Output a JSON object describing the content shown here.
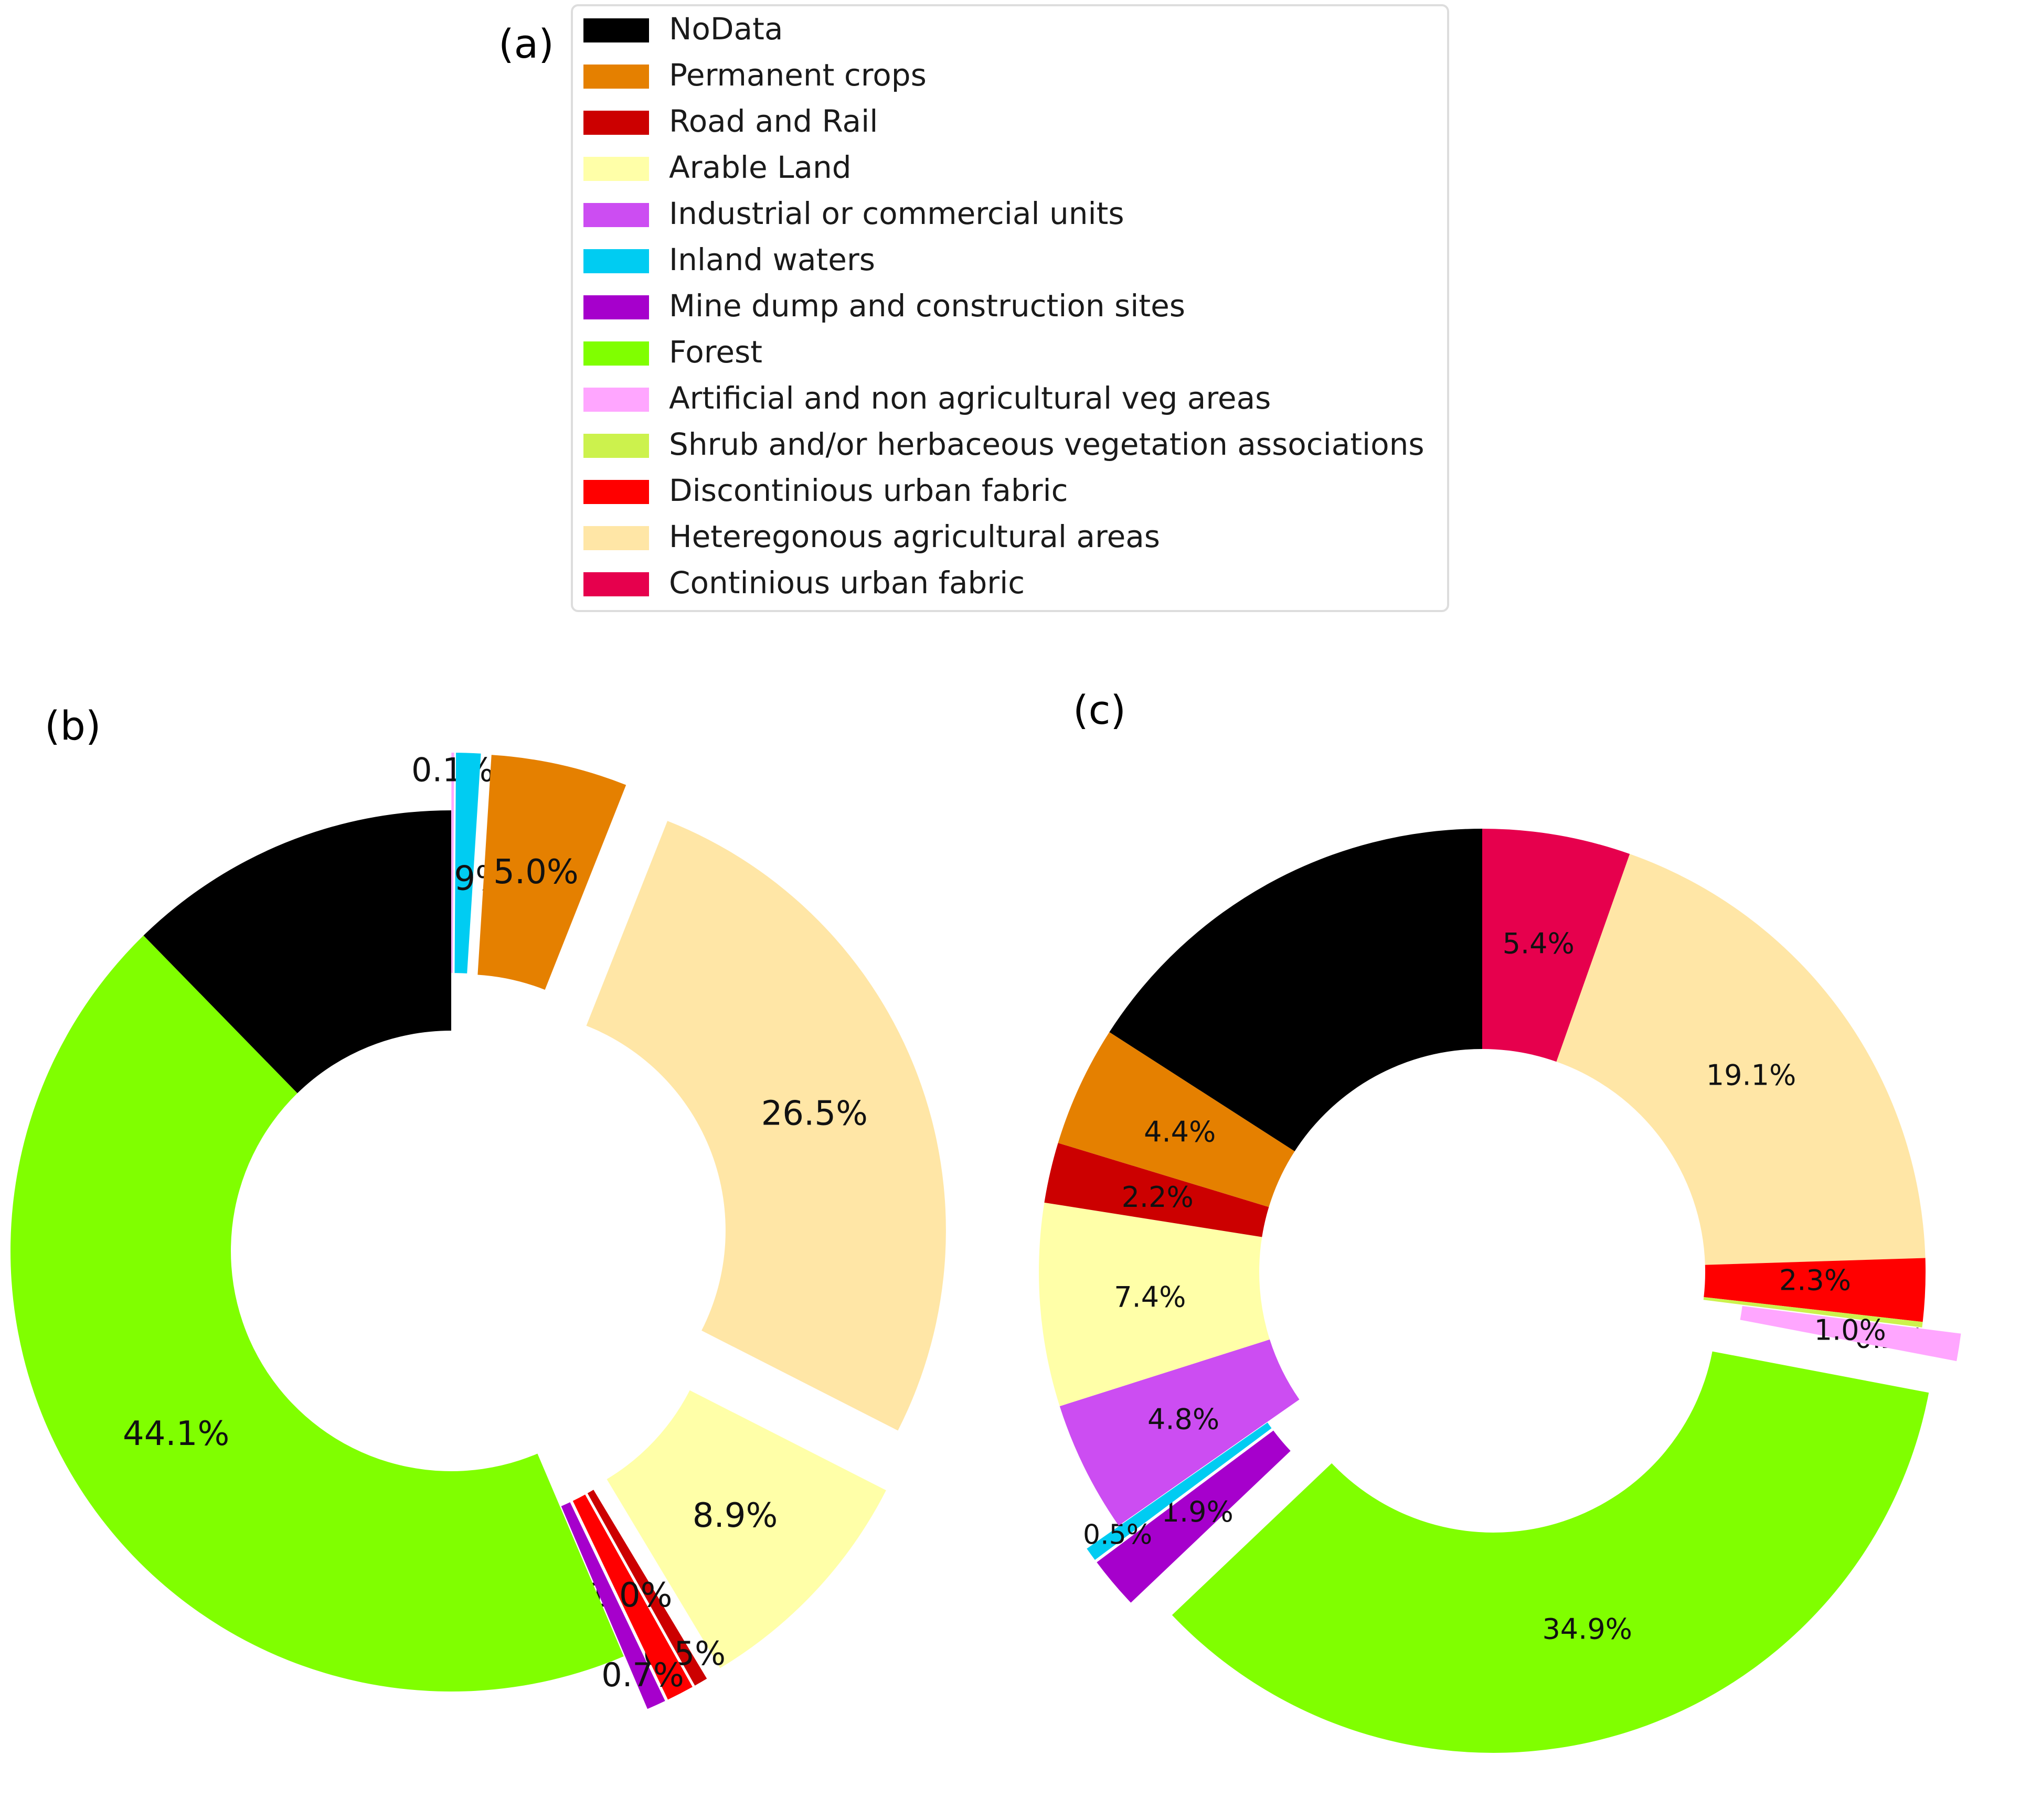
{
  "figure": {
    "panel_a_label": "(a)",
    "panel_b_label": "(b)",
    "panel_c_label": "(c)"
  },
  "legend": {
    "placement": "top-center",
    "entries": [
      {
        "name": "NoData",
        "color": "#000000"
      },
      {
        "name": "Permanent crops",
        "color": "#e58000"
      },
      {
        "name": "Road and Rail",
        "color": "#cc0000"
      },
      {
        "name": "Arable Land",
        "color": "#ffffa8"
      },
      {
        "name": "Industrial or commercial units",
        "color": "#cc4df2"
      },
      {
        "name": "Inland waters",
        "color": "#00ccf2"
      },
      {
        "name": "Mine dump and construction sites",
        "color": "#a600cc"
      },
      {
        "name": "Forest",
        "color": "#80ff00"
      },
      {
        "name": "Artificial and non agricultural veg areas",
        "color": "#ffa6ff"
      },
      {
        "name": "Shrub and/or herbaceous vegetation associations",
        "color": "#ccf24d"
      },
      {
        "name": "Discontinious urban fabric",
        "color": "#ff0000"
      },
      {
        "name": "Heteregonous agricultural areas",
        "color": "#ffe6a6"
      },
      {
        "name": "Continious urban fabric",
        "color": "#e6004d"
      }
    ]
  },
  "chart_data": [
    {
      "type": "pie",
      "style": "donut",
      "panel": "(b)",
      "start": "top (12 o'clock)",
      "direction": "clockwise",
      "slices": [
        {
          "category": "Artificial and non agricultural veg areas",
          "value": 0.1,
          "label": "0.1%",
          "exploded": true
        },
        {
          "category": "Inland waters",
          "value": 0.9,
          "label": "0.9%",
          "exploded": true
        },
        {
          "category": "Permanent crops",
          "value": 5.0,
          "label": "5.0%",
          "exploded": true
        },
        {
          "category": "Heteregonous agricultural areas",
          "value": 26.5,
          "label": "26.5%",
          "exploded": true
        },
        {
          "category": "Arable Land",
          "value": 8.9,
          "label": "8.9%",
          "exploded": true
        },
        {
          "category": "Road and Rail",
          "value": 0.5,
          "label": "0.5%",
          "exploded": true
        },
        {
          "category": "Discontinious urban fabric",
          "value": 1.0,
          "label": "1.0%",
          "exploded": true
        },
        {
          "category": "Mine dump and construction sites",
          "value": 0.7,
          "label": "0.7%",
          "exploded": true
        },
        {
          "category": "Forest",
          "value": 44.1,
          "label": "44.1%",
          "exploded": false
        },
        {
          "category": "NoData",
          "value": 12.3,
          "label": "",
          "exploded": false
        }
      ]
    },
    {
      "type": "pie",
      "style": "donut",
      "panel": "(c)",
      "start": "top (12 o'clock)",
      "direction": "clockwise",
      "slices": [
        {
          "category": "Continious urban fabric",
          "value": 5.4,
          "label": "5.4%",
          "exploded": false
        },
        {
          "category": "Heteregonous agricultural areas",
          "value": 19.1,
          "label": "19.1%",
          "exploded": false
        },
        {
          "category": "Discontinious urban fabric",
          "value": 2.3,
          "label": "2.3%",
          "exploded": false
        },
        {
          "category": "Shrub and/or herbaceous vegetation associations",
          "value": 0.2,
          "label": "0.2%",
          "exploded": false
        },
        {
          "category": "Artificial and non agricultural veg areas",
          "value": 1.0,
          "label": "1.0%",
          "exploded": true
        },
        {
          "category": "Forest",
          "value": 34.9,
          "label": "34.9%",
          "exploded": true
        },
        {
          "category": "Mine dump and construction sites",
          "value": 1.9,
          "label": "1.9%",
          "exploded": true
        },
        {
          "category": "Inland waters",
          "value": 0.5,
          "label": "0.5%",
          "exploded": true
        },
        {
          "category": "Industrial or commercial units",
          "value": 4.8,
          "label": "4.8%",
          "exploded": false
        },
        {
          "category": "Arable Land",
          "value": 7.4,
          "label": "7.4%",
          "exploded": false
        },
        {
          "category": "Road and Rail",
          "value": 2.2,
          "label": "2.2%",
          "exploded": false
        },
        {
          "category": "Permanent crops",
          "value": 4.4,
          "label": "4.4%",
          "exploded": false
        },
        {
          "category": "NoData",
          "value": 15.9,
          "label": "",
          "exploded": false
        }
      ]
    }
  ]
}
